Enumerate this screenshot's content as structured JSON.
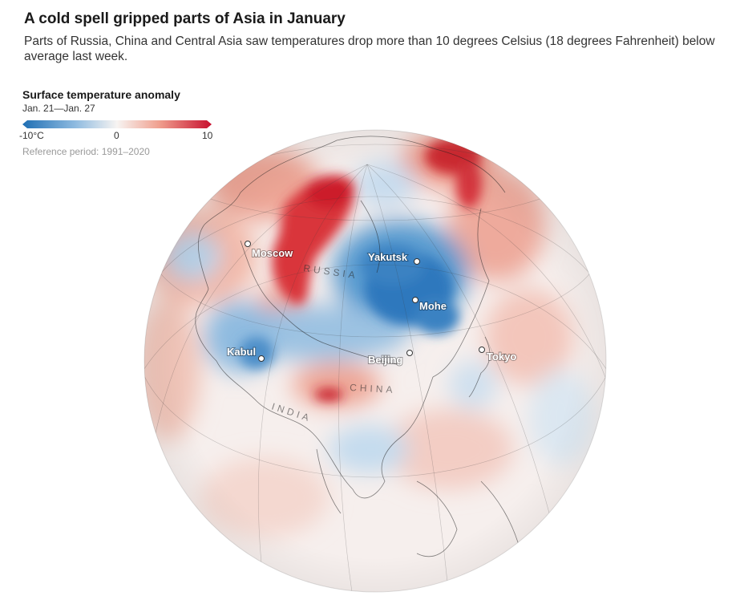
{
  "header": {
    "title": "A cold spell gripped parts of Asia in January",
    "subtitle": "Parts of Russia, China and Central Asia saw temperatures drop more than 10 degrees Celsius (18 degrees Fahrenheit) below average last week."
  },
  "legend": {
    "title": "Surface temperature anomaly",
    "dates": "Jan. 21—Jan. 27",
    "ticks": [
      "-10°C",
      "0",
      "10"
    ],
    "reference": "Reference period: 1991–2020",
    "colors": {
      "cold": "#1f6fb4",
      "neutral": "#f7f4f2",
      "warm": "#c8102e"
    }
  },
  "map": {
    "cities": [
      {
        "name": "Moscow"
      },
      {
        "name": "Yakutsk"
      },
      {
        "name": "Mohe"
      },
      {
        "name": "Kabul"
      },
      {
        "name": "Beijing"
      },
      {
        "name": "Tokyo"
      }
    ],
    "countries": [
      "RUSSIA",
      "CHINA",
      "INDIA"
    ]
  }
}
